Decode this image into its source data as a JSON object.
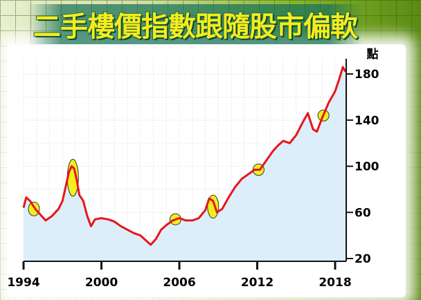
{
  "chart_data": {
    "type": "area",
    "title": "二手樓價指數跟隨股市偏軟",
    "ylabel": "點",
    "xlabel": "",
    "xlim": [
      1994,
      2018.8
    ],
    "ylim": [
      20,
      190
    ],
    "x_ticks": [
      "1994",
      "2000",
      "2006",
      "2012",
      "2018"
    ],
    "y_ticks": [
      "20",
      "60",
      "100",
      "140",
      "180"
    ],
    "grid": true,
    "colors": {
      "line": "#e8141a",
      "fill": "#dceefa",
      "highlight": "#f2ee20"
    },
    "series": [
      {
        "x": [
          1994.0,
          1994.2,
          1994.5,
          1994.9,
          1995.3,
          1995.7,
          1996.2,
          1996.7,
          1997.0,
          1997.3,
          1997.5,
          1997.7,
          1997.9,
          1998.1,
          1998.3,
          1998.6,
          1998.9,
          1999.2,
          1999.5,
          2000.0,
          2000.5,
          2001.0,
          2001.5,
          2002.0,
          2002.5,
          2003.0,
          2003.5,
          2003.8,
          2004.2,
          2004.6,
          2005.0,
          2005.5,
          2006.0,
          2006.5,
          2007.0,
          2007.5,
          2008.0,
          2008.3,
          2008.6,
          2008.9,
          2009.3,
          2009.8,
          2010.3,
          2010.8,
          2011.3,
          2011.8,
          2012.2,
          2012.7,
          2013.2,
          2013.6,
          2014.0,
          2014.5,
          2015.0,
          2015.5,
          2015.9,
          2016.3,
          2016.6,
          2017.0,
          2017.5,
          2018.0,
          2018.3,
          2018.6,
          2018.8
        ],
        "y": [
          64,
          73,
          70,
          63,
          58,
          53,
          57,
          63,
          70,
          85,
          95,
          100,
          98,
          88,
          75,
          70,
          57,
          48,
          54,
          55,
          54,
          52,
          48,
          45,
          42,
          40,
          35,
          32,
          37,
          45,
          49,
          53,
          55,
          53,
          53,
          55,
          62,
          72,
          70,
          60,
          63,
          73,
          82,
          89,
          93,
          97,
          97,
          105,
          113,
          118,
          122,
          120,
          127,
          138,
          146,
          132,
          130,
          142,
          155,
          165,
          175,
          186,
          182
        ]
      }
    ],
    "highlights": [
      {
        "x": 1994.8,
        "y": 63,
        "ry": 6
      },
      {
        "x": 1997.8,
        "y": 90,
        "ry": 16
      },
      {
        "x": 2005.7,
        "y": 54,
        "ry": 4
      },
      {
        "x": 2008.6,
        "y": 65,
        "ry": 10
      },
      {
        "x": 2012.1,
        "y": 97,
        "ry": 5
      },
      {
        "x": 2017.1,
        "y": 144,
        "ry": 4
      }
    ]
  }
}
